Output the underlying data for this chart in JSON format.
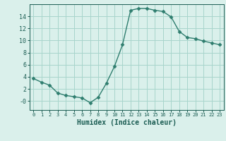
{
  "x": [
    0,
    1,
    2,
    3,
    4,
    5,
    6,
    7,
    8,
    9,
    10,
    11,
    12,
    13,
    14,
    15,
    16,
    17,
    18,
    19,
    20,
    21,
    22,
    23
  ],
  "y": [
    3.7,
    3.1,
    2.6,
    1.3,
    0.9,
    0.7,
    0.5,
    -0.3,
    0.6,
    2.9,
    5.7,
    9.3,
    15.0,
    15.3,
    15.3,
    15.0,
    14.8,
    13.9,
    11.5,
    10.5,
    10.3,
    9.9,
    9.6,
    9.3
  ],
  "xlabel": "Humidex (Indice chaleur)",
  "xlim": [
    -0.5,
    23.5
  ],
  "ylim": [
    -1.5,
    16.0
  ],
  "yticks": [
    0,
    2,
    4,
    6,
    8,
    10,
    12,
    14
  ],
  "ytick_labels": [
    "-0",
    "2",
    "4",
    "6",
    "8",
    "10",
    "12",
    "14"
  ],
  "line_color": "#2e7d6e",
  "marker": "D",
  "marker_size": 2.5,
  "bg_color": "#daf0eb",
  "grid_color": "#a8d5cc",
  "text_color": "#1a5c52"
}
